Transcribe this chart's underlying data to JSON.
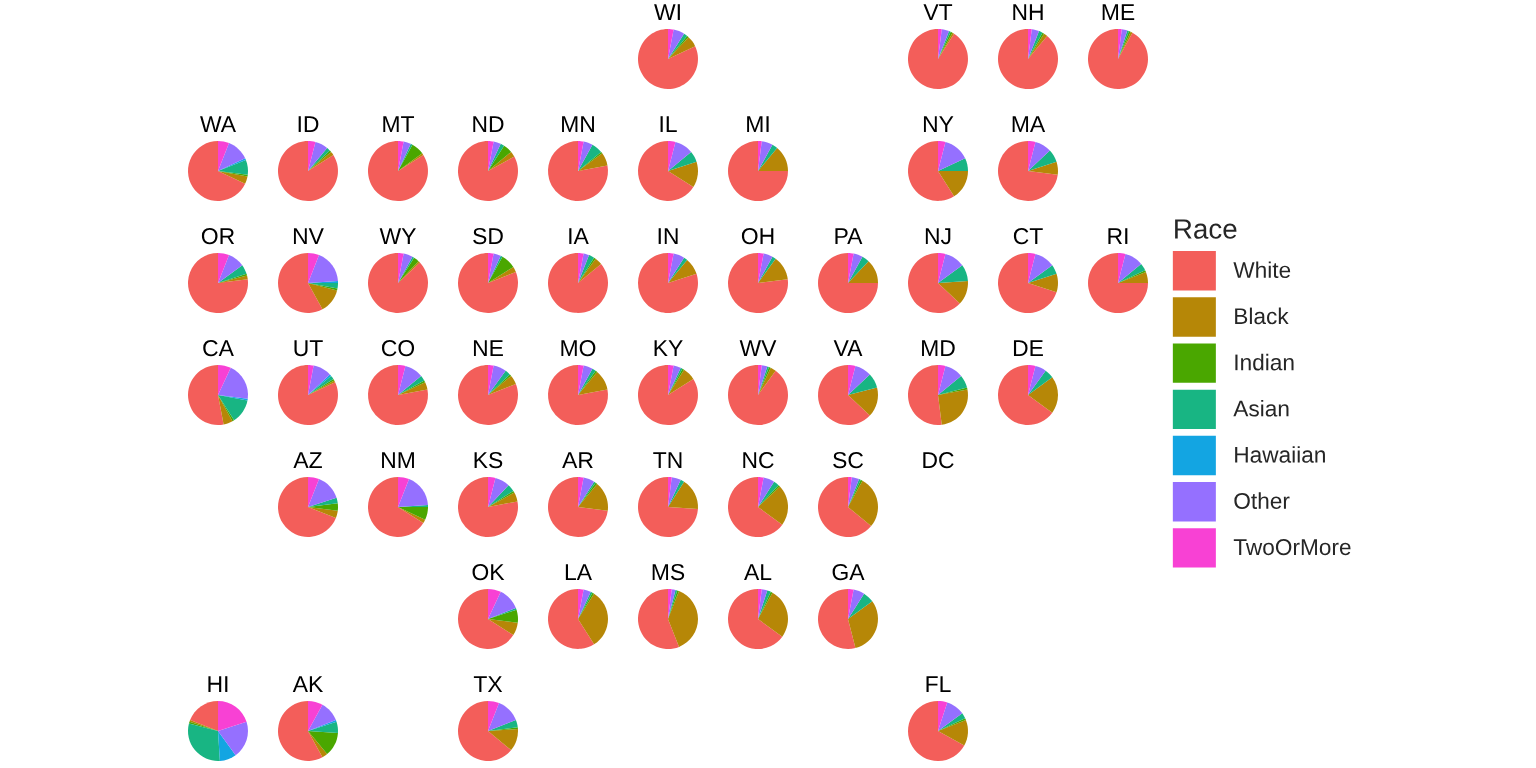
{
  "chart_data": {
    "type": "pie",
    "legend": "right",
    "legend_title": "Race",
    "categories": [
      "White",
      "Black",
      "Indian",
      "Asian",
      "Hawaiian",
      "Other",
      "TwoOrMore"
    ],
    "colors": [
      "#f35e5a",
      "#b68707",
      "#4aa700",
      "#18b583",
      "#13a5e2",
      "#9570ff",
      "#f841d4"
    ],
    "annotations": [
      "DC"
    ],
    "series": [
      {
        "name": "WI",
        "values": [
          82,
          6,
          1,
          2,
          null,
          6,
          3
        ]
      },
      {
        "name": "VT",
        "values": [
          91,
          1,
          1,
          1,
          null,
          4,
          2
        ]
      },
      {
        "name": "NH",
        "values": [
          89,
          2,
          1,
          2,
          null,
          4,
          2
        ]
      },
      {
        "name": "ME",
        "values": [
          92,
          1,
          1,
          1,
          null,
          3,
          2
        ]
      },
      {
        "name": "WA",
        "values": [
          68,
          4,
          1,
          8,
          1,
          12,
          6
        ]
      },
      {
        "name": "ID",
        "values": [
          84,
          2,
          1,
          2,
          null,
          7,
          4
        ]
      },
      {
        "name": "MT",
        "values": [
          84,
          1,
          7,
          1,
          null,
          4,
          3
        ]
      },
      {
        "name": "ND",
        "values": [
          83,
          3,
          5,
          2,
          null,
          4,
          3
        ]
      },
      {
        "name": "MN",
        "values": [
          78,
          7,
          1,
          6,
          null,
          5,
          3
        ]
      },
      {
        "name": "IL",
        "values": [
          66,
          14,
          null,
          6,
          null,
          10,
          4
        ]
      },
      {
        "name": "MI",
        "values": [
          75,
          14,
          null,
          3,
          null,
          6,
          2
        ]
      },
      {
        "name": "NY",
        "values": [
          59,
          16,
          null,
          7,
          null,
          14,
          4
        ]
      },
      {
        "name": "MA",
        "values": [
          73,
          7,
          null,
          7,
          null,
          9,
          4
        ]
      },
      {
        "name": "OR",
        "values": [
          77,
          2,
          1,
          5,
          null,
          9,
          6
        ]
      },
      {
        "name": "NV",
        "values": [
          58,
          13,
          1,
          3,
          1,
          18,
          6
        ]
      },
      {
        "name": "WY",
        "values": [
          87,
          1,
          3,
          1,
          null,
          5,
          3
        ]
      },
      {
        "name": "SD",
        "values": [
          81,
          3,
          8,
          1,
          null,
          4,
          3
        ]
      },
      {
        "name": "IA",
        "values": [
          86,
          4,
          1,
          3,
          null,
          3,
          3
        ]
      },
      {
        "name": "IN",
        "values": [
          80,
          9,
          null,
          2,
          null,
          6,
          3
        ]
      },
      {
        "name": "OH",
        "values": [
          77,
          13,
          null,
          2,
          null,
          5,
          3
        ]
      },
      {
        "name": "PA",
        "values": [
          75,
          13,
          null,
          4,
          null,
          5,
          3
        ]
      },
      {
        "name": "NJ",
        "values": [
          63,
          13,
          null,
          9,
          null,
          11,
          4
        ]
      },
      {
        "name": "CT",
        "values": [
          70,
          10,
          null,
          5,
          null,
          11,
          4
        ]
      },
      {
        "name": "RI",
        "values": [
          75,
          6,
          1,
          4,
          null,
          10,
          4
        ]
      },
      {
        "name": "CA",
        "values": [
          53,
          5,
          1,
          13,
          1,
          20,
          7
        ]
      },
      {
        "name": "UT",
        "values": [
          82,
          1,
          1,
          2,
          1,
          10,
          3
        ]
      },
      {
        "name": "CO",
        "values": [
          78,
          4,
          1,
          3,
          null,
          10,
          4
        ]
      },
      {
        "name": "NE",
        "values": [
          81,
          5,
          1,
          3,
          null,
          7,
          3
        ]
      },
      {
        "name": "MO",
        "values": [
          78,
          11,
          1,
          2,
          null,
          5,
          3
        ]
      },
      {
        "name": "KY",
        "values": [
          84,
          7,
          1,
          1,
          null,
          4,
          3
        ]
      },
      {
        "name": "WV",
        "values": [
          90,
          3,
          1,
          1,
          null,
          3,
          2
        ]
      },
      {
        "name": "VA",
        "values": [
          63,
          16,
          null,
          8,
          null,
          9,
          4
        ]
      },
      {
        "name": "MD",
        "values": [
          52,
          26,
          1,
          7,
          null,
          10,
          4
        ]
      },
      {
        "name": "DE",
        "values": [
          65,
          20,
          null,
          5,
          null,
          6,
          4
        ]
      },
      {
        "name": "AZ",
        "values": [
          69,
          4,
          4,
          3,
          null,
          14,
          6
        ]
      },
      {
        "name": "NM",
        "values": [
          66,
          2,
          7,
          1,
          null,
          18,
          6
        ]
      },
      {
        "name": "KS",
        "values": [
          78,
          5,
          1,
          4,
          null,
          8,
          4
        ]
      },
      {
        "name": "AR",
        "values": [
          73,
          16,
          1,
          1,
          null,
          6,
          3
        ]
      },
      {
        "name": "TN",
        "values": [
          74,
          17,
          null,
          2,
          null,
          5,
          2
        ]
      },
      {
        "name": "NC",
        "values": [
          65,
          22,
          1,
          3,
          null,
          6,
          3
        ]
      },
      {
        "name": "SC",
        "values": [
          64,
          28,
          1,
          1,
          null,
          4,
          2
        ]
      },
      {
        "name": "OK",
        "values": [
          66,
          7,
          7,
          1,
          null,
          12,
          7
        ]
      },
      {
        "name": "LA",
        "values": [
          59,
          32,
          1,
          1,
          null,
          4,
          3
        ]
      },
      {
        "name": "MS",
        "values": [
          56,
          38,
          1,
          1,
          null,
          2,
          2
        ]
      },
      {
        "name": "AL",
        "values": [
          65,
          27,
          1,
          2,
          null,
          3,
          2
        ]
      },
      {
        "name": "GA",
        "values": [
          54,
          31,
          null,
          6,
          null,
          6,
          3
        ]
      },
      {
        "name": "HI",
        "values": [
          19,
          1,
          1,
          30,
          9,
          20,
          20
        ]
      },
      {
        "name": "AK",
        "values": [
          58,
          3,
          13,
          6,
          1,
          11,
          8
        ]
      },
      {
        "name": "TX",
        "values": [
          64,
          12,
          1,
          4,
          null,
          13,
          6
        ]
      },
      {
        "name": "FL",
        "values": [
          67,
          14,
          1,
          3,
          null,
          10,
          5
        ]
      }
    ]
  }
}
